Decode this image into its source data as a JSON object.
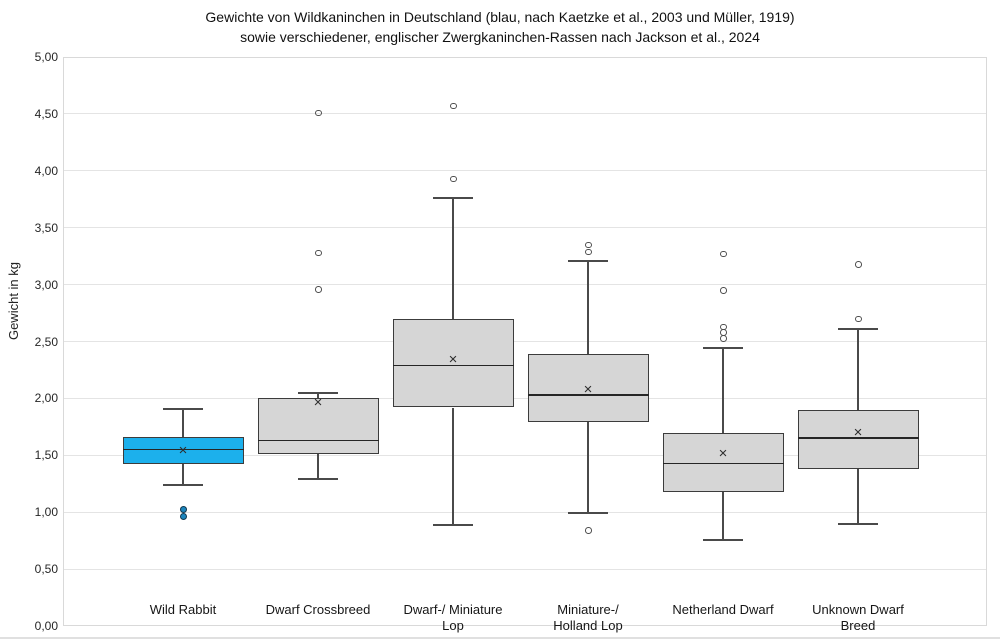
{
  "chart": {
    "title_line1": "Gewichte von Wildkaninchen in Deutschland (blau, nach Kaetzke et al., 2003 und Müller, 1919)",
    "title_line2": "sowie verschiedener, englischer Zwergkaninchen-Rassen nach Jackson et al., 2024",
    "y_axis_title": "Gewicht in kg"
  },
  "chart_data": {
    "type": "box",
    "title": "Gewichte von Wildkaninchen in Deutschland (blau, nach Kaetzke et al., 2003 und Müller, 1919) sowie verschiedener, englischer Zwergkaninchen-Rassen nach Jackson et al., 2024",
    "xlabel": "",
    "ylabel": "Gewicht in kg",
    "ylim": [
      0,
      5
    ],
    "ytick_step": 0.5,
    "grid": "horizontal",
    "legend": "none",
    "yticks": [
      {
        "label": "5,00",
        "value": 5.0
      },
      {
        "label": "4,50",
        "value": 4.5
      },
      {
        "label": "4,00",
        "value": 4.0
      },
      {
        "label": "3,50",
        "value": 3.5
      },
      {
        "label": "3,00",
        "value": 3.0
      },
      {
        "label": "2,50",
        "value": 2.5
      },
      {
        "label": "2,00",
        "value": 2.0
      },
      {
        "label": "1,50",
        "value": 1.5
      },
      {
        "label": "1,00",
        "value": 1.0
      },
      {
        "label": "0,50",
        "value": 0.5
      },
      {
        "label": "0,00",
        "value": 0.0
      }
    ],
    "categories": [
      "Wild Rabbit",
      "Dwarf Crossbreed",
      "Dwarf-/ Miniature Lop",
      "Miniature-/ Holland Lop",
      "Netherland Dwarf",
      "Unknown Dwarf Breed"
    ],
    "mean_marker": "×",
    "boxes": [
      {
        "name": "Wild Rabbit",
        "label_lines": [
          "Wild Rabbit"
        ],
        "fill": "#1cb0ec",
        "outlier_style": "filled-blue",
        "whisker_low": 1.24,
        "q1": 1.42,
        "median": 1.55,
        "q3": 1.66,
        "whisker_high": 1.91,
        "mean": 1.54,
        "outliers": [
          1.03,
          0.97
        ]
      },
      {
        "name": "Dwarf Crossbreed",
        "label_lines": [
          "Dwarf Crossbreed"
        ],
        "fill": "#d6d6d6",
        "outlier_style": "hollow",
        "whisker_low": 1.29,
        "q1": 1.51,
        "median": 1.63,
        "q3": 2.0,
        "whisker_high": 2.05,
        "mean": 1.96,
        "outliers": [
          4.51,
          3.28,
          2.96
        ]
      },
      {
        "name": "Dwarf-/ Miniature Lop",
        "label_lines": [
          "Dwarf-/ Miniature",
          "Lop"
        ],
        "fill": "#d6d6d6",
        "outlier_style": "hollow",
        "whisker_low": 0.89,
        "q1": 1.92,
        "median": 2.29,
        "q3": 2.7,
        "whisker_high": 3.76,
        "mean": 2.34,
        "outliers": [
          4.57,
          3.93
        ]
      },
      {
        "name": "Miniature-/ Holland Lop",
        "label_lines": [
          "Miniature-/",
          "Holland Lop"
        ],
        "fill": "#d6d6d6",
        "outlier_style": "hollow",
        "whisker_low": 0.99,
        "q1": 1.79,
        "median": 2.03,
        "q3": 2.39,
        "whisker_high": 3.21,
        "mean": 2.07,
        "outliers": [
          3.35,
          3.29,
          0.84
        ]
      },
      {
        "name": "Netherland Dwarf",
        "label_lines": [
          "Netherland Dwarf"
        ],
        "fill": "#d6d6d6",
        "outlier_style": "hollow",
        "whisker_low": 0.76,
        "q1": 1.18,
        "median": 1.43,
        "q3": 1.7,
        "whisker_high": 2.44,
        "mean": 1.51,
        "outliers": [
          3.27,
          2.95,
          2.63,
          2.58,
          2.53
        ]
      },
      {
        "name": "Unknown Dwarf Breed",
        "label_lines": [
          "Unknown Dwarf",
          "Breed"
        ],
        "fill": "#d6d6d6",
        "outlier_style": "hollow",
        "whisker_low": 0.9,
        "q1": 1.38,
        "median": 1.65,
        "q3": 1.9,
        "whisker_high": 2.61,
        "mean": 1.7,
        "outliers": [
          3.18,
          2.7
        ]
      }
    ],
    "colors": {
      "wild_rabbit_fill": "#1cb0ec",
      "dwarf_fill": "#d6d6d6",
      "box_border": "#3c3c3c",
      "whisker": "#4a4a4a",
      "gridline": "#e4e4e4",
      "plot_border": "#d9d9d9",
      "outlier_blue_fill": "#1b85bd",
      "text": "#1a1a1a"
    }
  }
}
